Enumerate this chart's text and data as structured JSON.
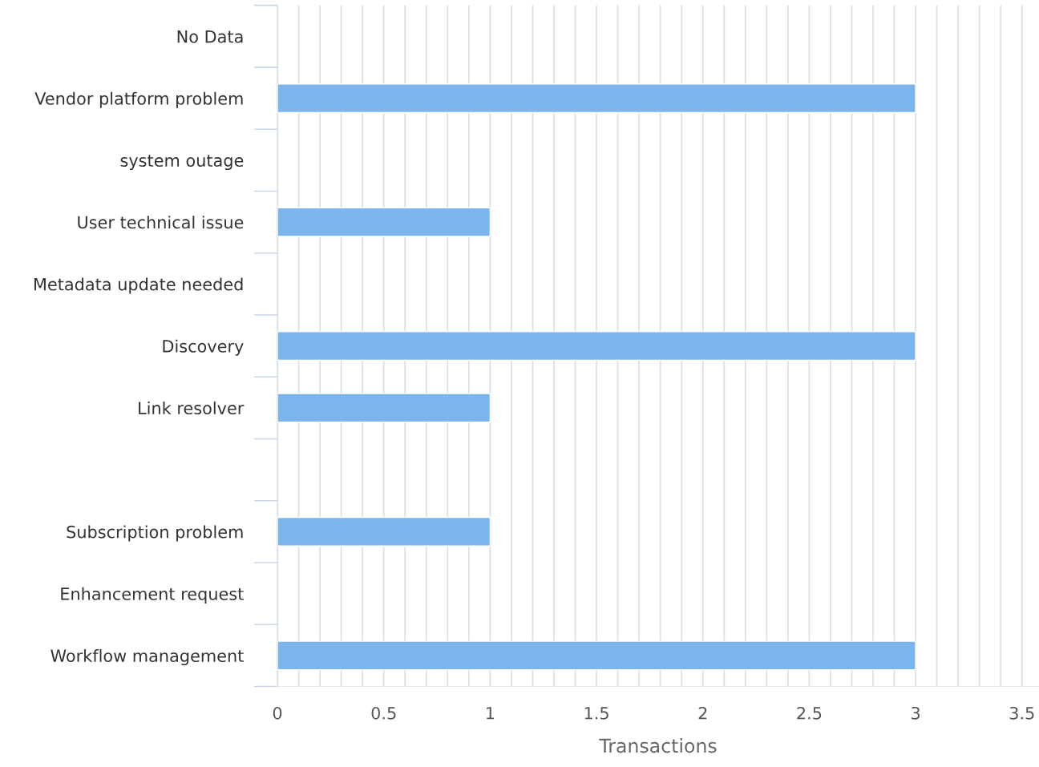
{
  "chart_data": {
    "type": "bar",
    "orientation": "horizontal",
    "xlabel": "Transactions",
    "categories": [
      "No Data",
      "Vendor platform problem",
      "system outage",
      "User technical issue",
      "Metadata update needed",
      "Discovery",
      "Link resolver",
      null,
      "Subscription problem",
      "Enhancement request",
      "Workflow management"
    ],
    "values": [
      null,
      3,
      null,
      1,
      null,
      3,
      1,
      null,
      1,
      null,
      3
    ],
    "color": "#7cb5ec",
    "xlim": [
      0,
      3.58
    ],
    "xticks": [
      0,
      {
        "value": 0.1,
        "label": null
      },
      {
        "value": 0.2,
        "label": null
      },
      {
        "value": 0.3,
        "label": null
      },
      {
        "value": 0.4,
        "label": null
      },
      0.5,
      {
        "value": 0.6,
        "label": null
      },
      {
        "value": 0.7,
        "label": null
      },
      {
        "value": 0.8,
        "label": null
      },
      {
        "value": 0.9,
        "label": null
      },
      1,
      {
        "value": 1.1,
        "label": null
      },
      {
        "value": 1.2,
        "label": null
      },
      {
        "value": 1.3,
        "label": null
      },
      {
        "value": 1.4,
        "label": null
      },
      1.5,
      {
        "value": 1.6,
        "label": null
      },
      {
        "value": 1.7,
        "label": null
      },
      {
        "value": 1.8,
        "label": null
      },
      {
        "value": 1.9,
        "label": null
      },
      2,
      {
        "value": 2.1,
        "label": null
      },
      {
        "value": 2.2,
        "label": null
      },
      {
        "value": 2.3,
        "label": null
      },
      {
        "value": 2.4,
        "label": null
      },
      2.5,
      {
        "value": 2.6,
        "label": null
      },
      {
        "value": 2.7,
        "label": null
      },
      {
        "value": 2.8,
        "label": null
      },
      {
        "value": 2.9,
        "label": null
      },
      3,
      {
        "value": 3.1,
        "label": null
      },
      {
        "value": 3.2,
        "label": null
      },
      {
        "value": 3.3,
        "label": null
      },
      {
        "value": 3.4,
        "label": null
      },
      3.5
    ],
    "grid": "x",
    "legend": false
  }
}
